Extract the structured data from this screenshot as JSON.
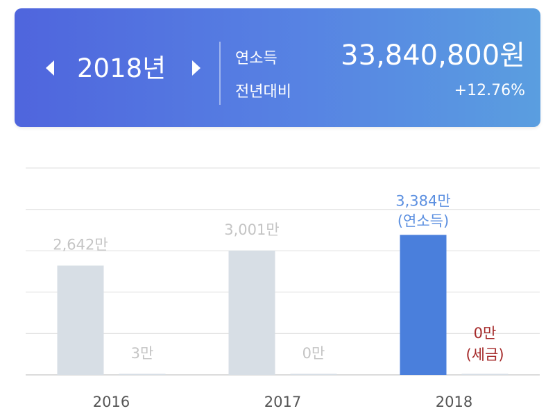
{
  "header": {
    "year_label": "2018년",
    "income_label": "연소득",
    "income_value": "33,840,800원",
    "yoy_label": "전년대비",
    "yoy_value": "+12.76%"
  },
  "colors": {
    "header_start": "#4f65dd",
    "header_end": "#5a9ee0",
    "income_bar_past": "#d7dee5",
    "income_bar_current": "#4a7fdc",
    "label_past": "#c4c4c4",
    "label_current": "#5b8fe0",
    "tax_label_current": "#a52a2a"
  },
  "chart_data": {
    "type": "bar",
    "categories": [
      "2016",
      "2017",
      "2018"
    ],
    "series": [
      {
        "name": "연소득",
        "values": [
          2642,
          3001,
          3384
        ]
      },
      {
        "name": "세금",
        "values": [
          3,
          0,
          0
        ]
      }
    ],
    "income_labels": [
      "2,642만",
      "3,001만",
      "3,384만"
    ],
    "income_current_suffix": "(연소득)",
    "tax_labels": [
      "3만",
      "0만",
      "0만"
    ],
    "tax_current_suffix": "(세금)",
    "unit": "만",
    "ylim": [
      0,
      5000
    ],
    "grid": true
  }
}
